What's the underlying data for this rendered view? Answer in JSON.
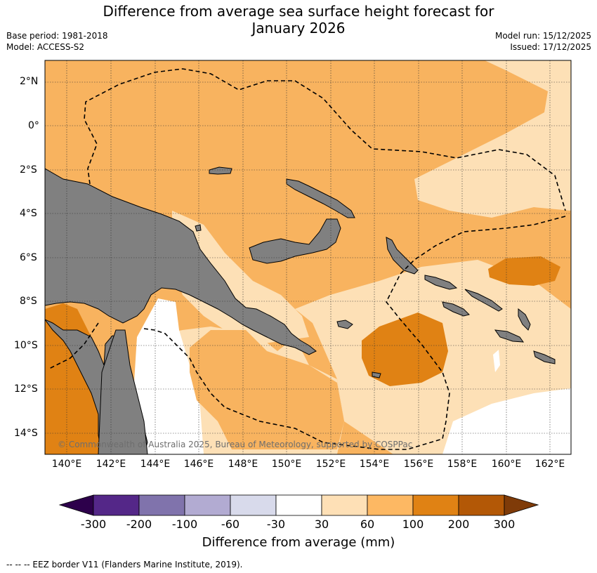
{
  "header": {
    "title_line1": "Difference from average sea surface height forecast for",
    "title_line2": "January 2026",
    "base_period": "Base period: 1981-2018",
    "model": "Model: ACCESS-S2",
    "model_run": "Model run: 15/12/2025",
    "issued": "Issued: 17/12/2025"
  },
  "map": {
    "lat_labels": [
      "2°N",
      "0°",
      "2°S",
      "4°S",
      "6°S",
      "8°S",
      "10°S",
      "12°S",
      "14°S"
    ],
    "lon_labels": [
      "140°E",
      "142°E",
      "144°E",
      "146°E",
      "148°E",
      "150°E",
      "152°E",
      "154°E",
      "156°E",
      "158°E",
      "160°E",
      "162°E"
    ],
    "credit": "© Commonwealth of Australia 2025, Bureau of Meteorology, supported by COSPPac",
    "colors": {
      "land": "#808080",
      "band_30_60": "#fde0b6",
      "band_60_100": "#f8b35f",
      "band_100_200": "#e08214",
      "band_200_300": "#b35806",
      "neutral": "#ffffff"
    }
  },
  "colorbar": {
    "labels": [
      "-300",
      "-200",
      "-100",
      "-60",
      "-30",
      "30",
      "60",
      "100",
      "200",
      "300"
    ],
    "colors": [
      "#2d004b",
      "#542788",
      "#8073ac",
      "#b2abd2",
      "#d8daeb",
      "#ffffff",
      "#fee0b6",
      "#fdb863",
      "#e08214",
      "#b35806",
      "#7f3b08"
    ],
    "title": "Difference from average (mm)"
  },
  "legend": {
    "eez": "-- -- -- EEZ border V11 (Flanders Marine Institute, 2019)."
  }
}
